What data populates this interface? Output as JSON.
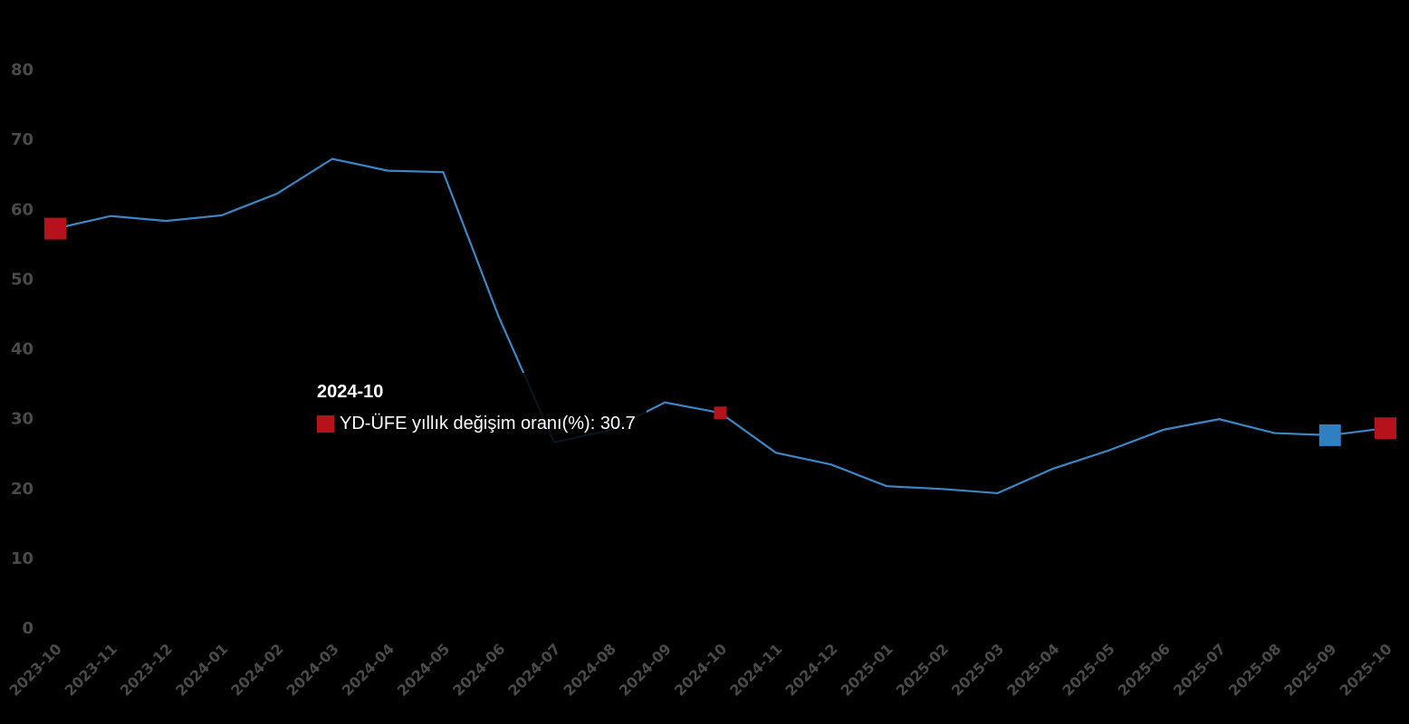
{
  "chart_data": {
    "type": "line",
    "title": "",
    "xlabel": "",
    "ylabel": "",
    "ylim": [
      0,
      80
    ],
    "yticks": [
      "0",
      "10",
      "20",
      "30",
      "40",
      "50",
      "60",
      "70",
      "80"
    ],
    "categories": [
      "2023-10",
      "2023-11",
      "2023-12",
      "2024-01",
      "2024-02",
      "2024-03",
      "2024-04",
      "2024-05",
      "2024-06",
      "2024-07",
      "2024-08",
      "2024-09",
      "2024-10",
      "2024-11",
      "2024-12",
      "2025-01",
      "2025-02",
      "2025-03",
      "2025-04",
      "2025-05",
      "2025-06",
      "2025-07",
      "2025-08",
      "2025-09",
      "2025-10"
    ],
    "series": [
      {
        "name": "YD-ÜFE yıllık değişim oranı(%)",
        "color": "#3a87c8",
        "values": [
          57.1,
          58.9,
          58.2,
          59.0,
          62.1,
          67.1,
          65.4,
          65.2,
          44.5,
          26.5,
          28.2,
          32.2,
          30.7,
          25.0,
          23.3,
          20.2,
          19.8,
          19.2,
          22.7,
          25.3,
          28.3,
          29.8,
          27.8,
          27.5,
          28.5
        ]
      }
    ],
    "markers": [
      {
        "index": 0,
        "color": "#b5121b"
      },
      {
        "index": 12,
        "color": "#b5121b"
      },
      {
        "index": 23,
        "color": "#2f7fc1"
      },
      {
        "index": 24,
        "color": "#b5121b"
      }
    ],
    "grid": false
  },
  "tooltip": {
    "title": "2024-10",
    "label": "YD-ÜFE yıllık değişim oranı(%): 30.7",
    "swatch_color": "#b5121b"
  }
}
